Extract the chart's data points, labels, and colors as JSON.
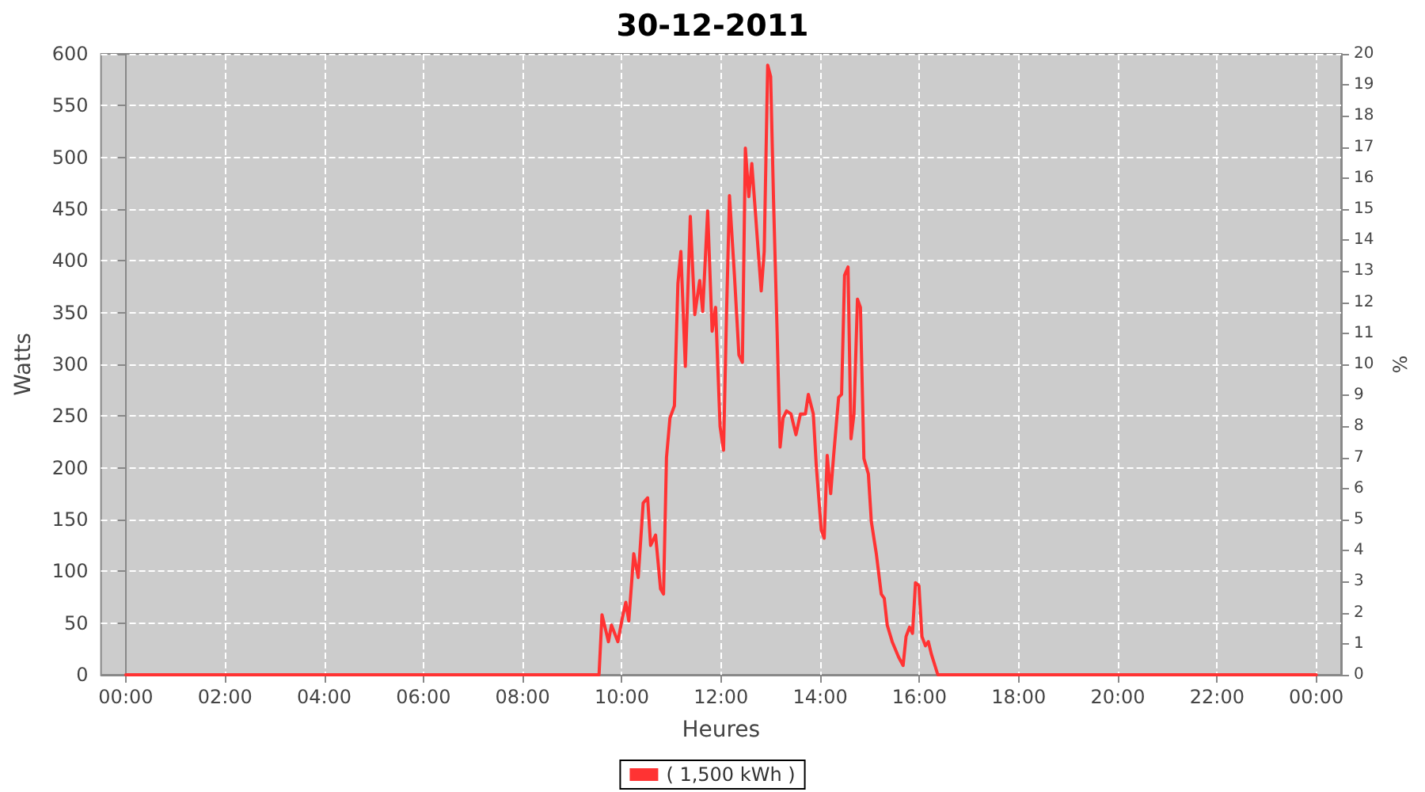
{
  "chart_data": {
    "type": "line",
    "title": "30-12-2011",
    "xlabel": "Heures",
    "ylabel": "Watts",
    "y2label": "%",
    "xlim": [
      -0.5,
      24.5
    ],
    "xticks": [
      {
        "value": 0,
        "label": "00:00"
      },
      {
        "value": 2,
        "label": "02:00"
      },
      {
        "value": 4,
        "label": "04:00"
      },
      {
        "value": 6,
        "label": "06:00"
      },
      {
        "value": 8,
        "label": "08:00"
      },
      {
        "value": 10,
        "label": "10:00"
      },
      {
        "value": 12,
        "label": "12:00"
      },
      {
        "value": 14,
        "label": "14:00"
      },
      {
        "value": 16,
        "label": "16:00"
      },
      {
        "value": 18,
        "label": "18:00"
      },
      {
        "value": 20,
        "label": "20:00"
      },
      {
        "value": 22,
        "label": "22:00"
      },
      {
        "value": 24,
        "label": "00:00"
      }
    ],
    "ylim": [
      0,
      600
    ],
    "yticks": [
      0,
      50,
      100,
      150,
      200,
      250,
      300,
      350,
      400,
      450,
      500,
      550,
      600
    ],
    "y2lim": [
      0,
      20
    ],
    "y2ticks": [
      0,
      1,
      2,
      3,
      4,
      5,
      6,
      7,
      8,
      9,
      10,
      11,
      12,
      13,
      14,
      15,
      16,
      17,
      18,
      19,
      20
    ],
    "grid": true,
    "legend": "bottom",
    "marker": "none",
    "line_style": "solid",
    "series": [
      {
        "name": "( 1,500 kWh )",
        "color": "#ff3333",
        "x": [
          0,
          9.54,
          9.6,
          9.73,
          9.79,
          9.92,
          10.01,
          10.08,
          10.14,
          10.24,
          10.33,
          10.43,
          10.52,
          10.58,
          10.68,
          10.78,
          10.84,
          10.9,
          10.97,
          11.06,
          11.13,
          11.19,
          11.28,
          11.38,
          11.47,
          11.57,
          11.63,
          11.73,
          11.82,
          11.89,
          11.98,
          12.05,
          12.11,
          12.17,
          12.27,
          12.36,
          12.43,
          12.49,
          12.56,
          12.62,
          12.68,
          12.75,
          12.81,
          12.87,
          12.94,
          13.0,
          13.06,
          13.13,
          13.19,
          13.25,
          13.32,
          13.41,
          13.51,
          13.6,
          13.7,
          13.76,
          13.86,
          13.92,
          14.02,
          14.08,
          14.14,
          14.21,
          14.27,
          14.37,
          14.43,
          14.49,
          14.56,
          14.62,
          14.68,
          14.75,
          14.81,
          14.88,
          14.97,
          15.03,
          15.13,
          15.23,
          15.29,
          15.35,
          15.45,
          15.58,
          15.67,
          15.73,
          15.8,
          15.86,
          15.92,
          15.99,
          16.05,
          16.12,
          16.18,
          16.24,
          16.37,
          24
        ],
        "values": [
          0,
          0,
          58,
          32,
          48,
          32,
          55,
          70,
          52,
          117,
          94,
          166,
          171,
          125,
          135,
          83,
          78,
          210,
          248,
          260,
          378,
          409,
          298,
          443,
          348,
          381,
          351,
          448,
          332,
          355,
          240,
          217,
          348,
          463,
          386,
          309,
          302,
          509,
          462,
          494,
          455,
          409,
          371,
          409,
          589,
          578,
          455,
          332,
          220,
          248,
          255,
          252,
          232,
          252,
          252,
          271,
          252,
          202,
          140,
          132,
          212,
          175,
          212,
          268,
          271,
          386,
          394,
          228,
          252,
          363,
          355,
          209,
          194,
          148,
          117,
          78,
          74,
          48,
          32,
          17,
          9,
          37,
          46,
          40,
          89,
          86,
          37,
          28,
          32,
          20,
          0,
          0
        ]
      }
    ]
  }
}
